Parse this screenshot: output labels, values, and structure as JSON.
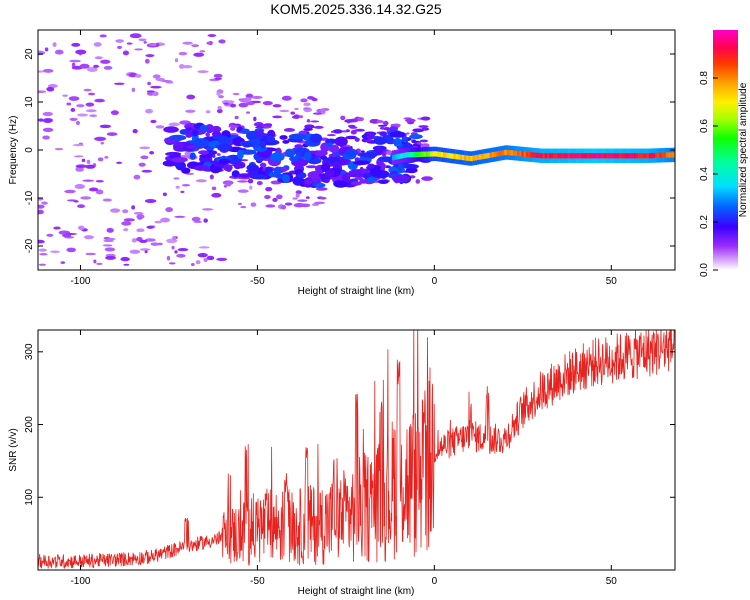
{
  "title": "KOM5.2025.336.14.32.G25",
  "colors": {
    "snr_line": "#e8231f",
    "axis": "#000000",
    "background": "#ffffff"
  },
  "chart_data": [
    {
      "type": "heatmap",
      "name": "spectrogram",
      "xlabel": "Height of straight line (km)",
      "ylabel": "Frequency (Hz)",
      "xlim": [
        -112,
        68
      ],
      "ylim": [
        -25,
        25
      ],
      "xticks": [
        -100,
        -50,
        0,
        50
      ],
      "xtick_labels": [
        "-100",
        "-50",
        "0",
        "50"
      ],
      "yticks": [
        -20,
        -10,
        0,
        10,
        20
      ],
      "ytick_labels": [
        "-20",
        "-10",
        "0",
        "10",
        "20"
      ],
      "colorbar": {
        "label": "Normalized spectral amplitude",
        "range": [
          0,
          1
        ],
        "ticks": [
          0.0,
          0.2,
          0.4,
          0.6,
          0.8
        ],
        "tick_labels": [
          "0.0",
          "0.2",
          "0.4",
          "0.6",
          "0.8"
        ]
      },
      "trace_description_points": [
        {
          "x": -60,
          "y": 0.5,
          "amp": 0.15
        },
        {
          "x": -45,
          "y": -1.5,
          "amp": 0.2
        },
        {
          "x": -30,
          "y": -2.5,
          "amp": 0.25
        },
        {
          "x": -15,
          "y": -2.0,
          "amp": 0.3
        },
        {
          "x": -8,
          "y": -1.0,
          "amp": 0.4
        },
        {
          "x": 0,
          "y": -0.8,
          "amp": 0.7
        },
        {
          "x": 10,
          "y": -1.8,
          "amp": 0.75
        },
        {
          "x": 20,
          "y": -0.5,
          "amp": 0.8
        },
        {
          "x": 30,
          "y": -1.2,
          "amp": 0.9
        },
        {
          "x": 45,
          "y": -1.2,
          "amp": 0.95
        },
        {
          "x": 60,
          "y": -1.2,
          "amp": 0.9
        },
        {
          "x": 68,
          "y": -1.0,
          "amp": 0.8
        }
      ]
    },
    {
      "type": "line",
      "name": "snr",
      "xlabel": "Height of straight line (km)",
      "ylabel": "SNR (v/v)",
      "xlim": [
        -112,
        68
      ],
      "ylim": [
        0,
        330
      ],
      "xticks": [
        -100,
        -50,
        0,
        50
      ],
      "xtick_labels": [
        "-100",
        "-50",
        "0",
        "50"
      ],
      "yticks": [
        100,
        200,
        300
      ],
      "ytick_labels": [
        "100",
        "200",
        "300"
      ],
      "series": [
        {
          "name": "SNR",
          "x": [
            -112,
            -100,
            -90,
            -80,
            -72,
            -65,
            -55,
            -50,
            -45,
            -40,
            -35,
            -30,
            -25,
            -20,
            -15,
            -12,
            -10,
            -8,
            -5,
            -2,
            0,
            5,
            10,
            15,
            20,
            25,
            30,
            35,
            40,
            45,
            50,
            55,
            60,
            65,
            68
          ],
          "values": [
            12,
            12,
            14,
            18,
            30,
            38,
            50,
            58,
            60,
            58,
            62,
            66,
            75,
            85,
            95,
            110,
            150,
            120,
            120,
            140,
            165,
            175,
            185,
            180,
            180,
            220,
            245,
            262,
            275,
            285,
            290,
            295,
            300,
            305,
            310
          ]
        }
      ],
      "spikes": [
        {
          "x": -70,
          "y": 75
        },
        {
          "x": -53,
          "y": 175
        },
        {
          "x": -42,
          "y": 135
        },
        {
          "x": -36,
          "y": 170
        },
        {
          "x": -28,
          "y": 165
        },
        {
          "x": -22,
          "y": 245
        },
        {
          "x": -15,
          "y": 250
        },
        {
          "x": -10,
          "y": 300
        },
        {
          "x": -3,
          "y": 235
        },
        {
          "x": 10,
          "y": 250
        },
        {
          "x": 15,
          "y": 255
        }
      ]
    }
  ]
}
